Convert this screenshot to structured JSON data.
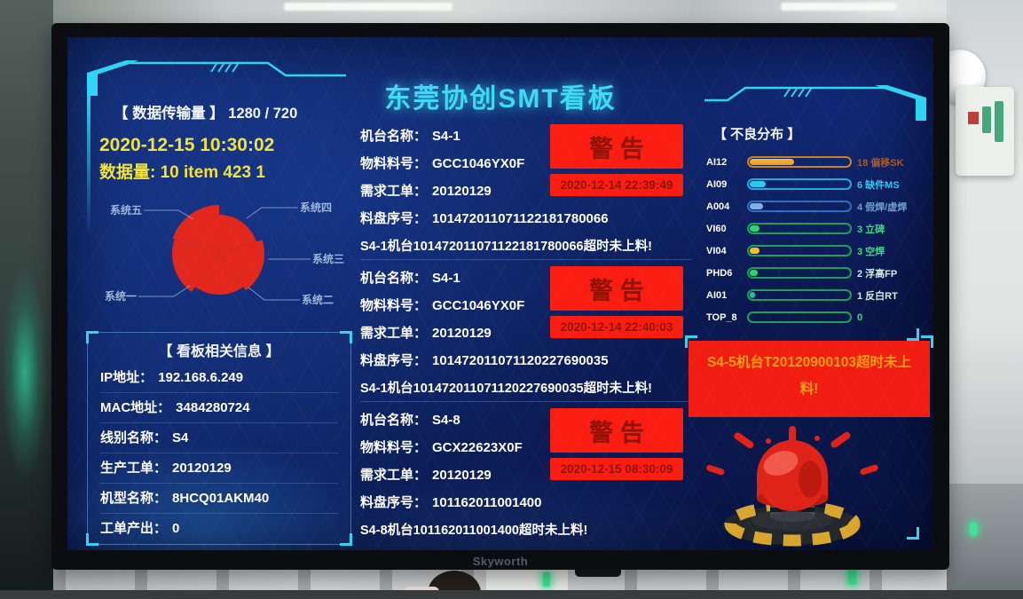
{
  "title": "东莞协创SMT看板",
  "tv": {
    "brand": "Skyworth"
  },
  "colors": {
    "accent_cyan": "#2fd4f2",
    "title_cyan": "#3fd9f6",
    "highlight_yellow": "#f2e23a",
    "warning_bg": "#fb1d10",
    "warning_text": "#8f1309",
    "side_alert_bg": "#f21d12",
    "side_alert_text": "#ffa006",
    "pie_red": "#e2271c"
  },
  "data_panel": {
    "header": "【 数据传输量 】",
    "header_value": "1280 / 720",
    "timestamp": "2020-12-15 10:30:02",
    "data_volume": "数据量: 10 item 423 1",
    "pie_labels": [
      "系统一",
      "系统二",
      "系统三",
      "系统四",
      "系统五"
    ]
  },
  "info_panel": {
    "title": "【 看板相关信息 】",
    "rows": [
      {
        "label": "IP地址：",
        "value": "192.168.6.249"
      },
      {
        "label": "MAC地址：",
        "value": "3484280724"
      },
      {
        "label": "线别名称：",
        "value": "S4"
      },
      {
        "label": "生产工单：",
        "value": "20120129"
      },
      {
        "label": "机型名称：",
        "value": "8HCQ01AKM40"
      },
      {
        "label": "工单产出：",
        "value": "0"
      }
    ]
  },
  "alerts": [
    {
      "rows": [
        {
          "label": "机台名称：",
          "value": "S4-1"
        },
        {
          "label": "物料料号：",
          "value": "GCC1046YX0F"
        },
        {
          "label": "需求工单：",
          "value": "20120129"
        },
        {
          "label": "料盘序号：",
          "value": "101472011071122181780066"
        }
      ],
      "message": "S4-1机台101472011071122181780066超时未上料!",
      "warning_label": "警告",
      "warning_time": "2020-12-14 22:39:49"
    },
    {
      "rows": [
        {
          "label": "机台名称：",
          "value": "S4-1"
        },
        {
          "label": "物料料号：",
          "value": "GCC1046YX0F"
        },
        {
          "label": "需求工单：",
          "value": "20120129"
        },
        {
          "label": "料盘序号：",
          "value": "101472011071120227690035"
        }
      ],
      "message": "S4-1机台101472011071120227690035超时未上料!",
      "warning_label": "警告",
      "warning_time": "2020-12-14 22:40:03"
    },
    {
      "rows": [
        {
          "label": "机台名称：",
          "value": "S4-8"
        },
        {
          "label": "物料料号：",
          "value": "GCX22623X0F"
        },
        {
          "label": "需求工单：",
          "value": "20120129"
        },
        {
          "label": "料盘序号：",
          "value": "101162011001400"
        }
      ],
      "message": "S4-8机台101162011001400超时未上料!",
      "warning_label": "警告",
      "warning_time": "2020-12-15 08:30:09"
    }
  ],
  "defect_panel": {
    "title": "【 不良分布 】",
    "bars": [
      {
        "label": "AI12",
        "count": 18,
        "value_label": "18 偏移SK",
        "pct": 45
      },
      {
        "label": "AI09",
        "count": 6,
        "value_label": "6 缺件MS",
        "pct": 16
      },
      {
        "label": "A004",
        "count": 4,
        "value_label": "4 假焊/虚焊",
        "pct": 13
      },
      {
        "label": "VI60",
        "count": 3,
        "value_label": "3 立碑",
        "pct": 10
      },
      {
        "label": "VI04",
        "count": 3,
        "value_label": "3 空焊",
        "pct": 10
      },
      {
        "label": "PHD6",
        "count": 2,
        "value_label": "2 浮高FP",
        "pct": 8
      },
      {
        "label": "AI01",
        "count": 1,
        "value_label": "1 反白RT",
        "pct": 5
      },
      {
        "label": "TOP_8",
        "count": 0,
        "value_label": "0",
        "pct": 0
      }
    ]
  },
  "side_alert": {
    "text": "S4-5机台T20120900103超时未上料!"
  },
  "chart_data": [
    {
      "type": "pie",
      "title": "数据传输量",
      "categories": [
        "系统一",
        "系统二",
        "系统三",
        "系统四",
        "系统五"
      ],
      "values": [
        1,
        1,
        1,
        1,
        1
      ],
      "note": "red rose-style pie, equal-looking red sectors, only labels visible",
      "legend_position": "around"
    },
    {
      "type": "bar",
      "title": "不良分布",
      "categories": [
        "AI12",
        "AI09",
        "A004",
        "VI60",
        "VI04",
        "PHD6",
        "AI01",
        "TOP_8"
      ],
      "values": [
        18,
        6,
        4,
        3,
        3,
        2,
        1,
        0
      ],
      "value_labels": [
        "18 偏移SK",
        "6 缺件MS",
        "4 假焊/虚焊",
        "3 立碑",
        "3 空焊",
        "2 浮高FP",
        "1 反白RT",
        "0"
      ],
      "xlabel": "",
      "ylabel": "",
      "orientation": "horizontal"
    }
  ]
}
